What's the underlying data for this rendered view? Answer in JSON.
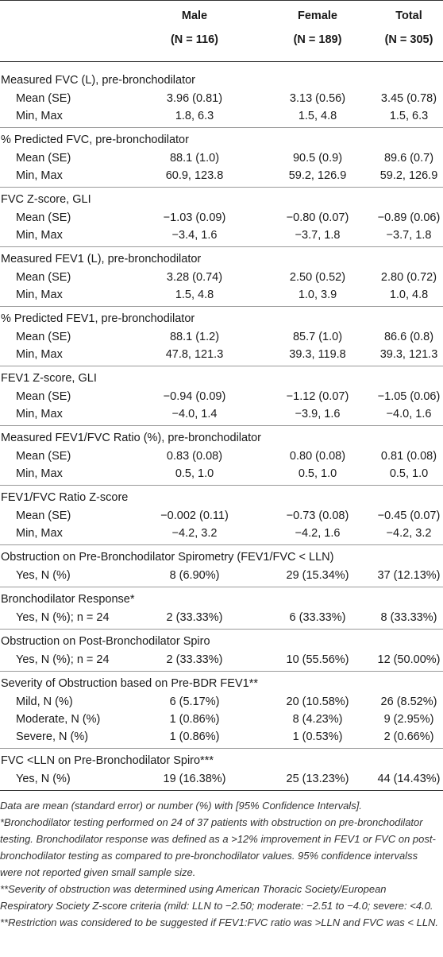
{
  "header": {
    "columns": [
      "Male",
      "Female",
      "Total"
    ],
    "n": [
      "(N = 116)",
      "(N = 189)",
      "(N = 305)"
    ]
  },
  "sections": [
    {
      "title": "Measured FVC (L), pre-bronchodilator",
      "rows": [
        {
          "label": "Mean (SE)",
          "values": [
            "3.96 (0.81)",
            "3.13 (0.56)",
            "3.45 (0.78)"
          ]
        },
        {
          "label": "Min, Max",
          "values": [
            "1.8, 6.3",
            "1.5, 4.8",
            "1.5, 6.3"
          ]
        }
      ]
    },
    {
      "title": "% Predicted FVC, pre-bronchodilator",
      "rows": [
        {
          "label": "Mean (SE)",
          "values": [
            "88.1 (1.0)",
            "90.5 (0.9)",
            "89.6 (0.7)"
          ]
        },
        {
          "label": "Min, Max",
          "values": [
            "60.9, 123.8",
            "59.2, 126.9",
            "59.2, 126.9"
          ]
        }
      ]
    },
    {
      "title": "FVC Z-score, GLI",
      "rows": [
        {
          "label": "Mean (SE)",
          "values": [
            "−1.03 (0.09)",
            "−0.80 (0.07)",
            "−0.89 (0.06)"
          ]
        },
        {
          "label": "Min, Max",
          "values": [
            "−3.4, 1.6",
            "−3.7, 1.8",
            "−3.7, 1.8"
          ]
        }
      ]
    },
    {
      "title": "Measured FEV1 (L), pre-bronchodilator",
      "rows": [
        {
          "label": "Mean (SE)",
          "values": [
            "3.28 (0.74)",
            "2.50 (0.52)",
            "2.80 (0.72)"
          ]
        },
        {
          "label": "Min, Max",
          "values": [
            "1.5, 4.8",
            "1.0, 3.9",
            "1.0, 4.8"
          ]
        }
      ]
    },
    {
      "title": "% Predicted FEV1, pre-bronchodilator",
      "rows": [
        {
          "label": "Mean (SE)",
          "values": [
            "88.1 (1.2)",
            "85.7 (1.0)",
            "86.6 (0.8)"
          ]
        },
        {
          "label": "Min, Max",
          "values": [
            "47.8, 121.3",
            "39.3, 119.8",
            "39.3, 121.3"
          ]
        }
      ]
    },
    {
      "title": "FEV1 Z-score, GLI",
      "rows": [
        {
          "label": "Mean (SE)",
          "values": [
            "−0.94 (0.09)",
            "−1.12 (0.07)",
            "−1.05 (0.06)"
          ]
        },
        {
          "label": "Min, Max",
          "values": [
            "−4.0, 1.4",
            "−3.9, 1.6",
            "−4.0, 1.6"
          ]
        }
      ]
    },
    {
      "title": "Measured FEV1/FVC Ratio (%), pre-bronchodilator",
      "rows": [
        {
          "label": "Mean (SE)",
          "values": [
            "0.83 (0.08)",
            "0.80 (0.08)",
            "0.81 (0.08)"
          ]
        },
        {
          "label": "Min, Max",
          "values": [
            "0.5, 1.0",
            "0.5, 1.0",
            "0.5, 1.0"
          ]
        }
      ]
    },
    {
      "title": "FEV1/FVC Ratio Z-score",
      "rows": [
        {
          "label": "Mean (SE)",
          "values": [
            "−0.002 (0.11)",
            "−0.73 (0.08)",
            "−0.45 (0.07)"
          ]
        },
        {
          "label": "Min, Max",
          "values": [
            "−4.2, 3.2",
            "−4.2, 1.6",
            "−4.2, 3.2"
          ]
        }
      ]
    },
    {
      "title": "Obstruction on Pre-Bronchodilator Spirometry (FEV1/FVC < LLN)",
      "rows": [
        {
          "label": "Yes, N (%)",
          "values": [
            "8 (6.90%)",
            "29 (15.34%)",
            "37 (12.13%)"
          ]
        }
      ]
    },
    {
      "title": "Bronchodilator Response*",
      "rows": [
        {
          "label": "Yes, N (%); n = 24",
          "values": [
            "2 (33.33%)",
            "6 (33.33%)",
            "8 (33.33%)"
          ]
        }
      ]
    },
    {
      "title": "Obstruction on Post-Bronchodilator Spiro",
      "rows": [
        {
          "label": "Yes, N (%); n = 24",
          "values": [
            "2 (33.33%)",
            "10 (55.56%)",
            "12 (50.00%)"
          ]
        }
      ]
    },
    {
      "title": "Severity of Obstruction based on Pre-BDR FEV1**",
      "rows": [
        {
          "label": "Mild, N (%)",
          "values": [
            "6 (5.17%)",
            "20 (10.58%)",
            "26 (8.52%)"
          ]
        },
        {
          "label": "Moderate, N (%)",
          "values": [
            "1 (0.86%)",
            "8 (4.23%)",
            "9 (2.95%)"
          ]
        },
        {
          "label": "Severe, N (%)",
          "values": [
            "1 (0.86%)",
            "1 (0.53%)",
            "2 (0.66%)"
          ]
        }
      ]
    },
    {
      "title": "FVC <LLN on Pre-Bronchodilator Spiro***",
      "rows": [
        {
          "label": "Yes, N (%)",
          "values": [
            "19 (16.38%)",
            "25 (13.23%)",
            "44 (14.43%)"
          ]
        }
      ]
    }
  ],
  "footnotes": [
    "Data are mean (standard error) or number (%) with [95% Confidence Intervals].",
    "*Bronchodilator testing performed on 24 of 37 patients with obstruction on pre-bronchodilator testing. Bronchodilator response was defined as a >12% improvement in FEV1 or FVC on post-bronchodilator testing as compared to pre-bronchodilator values. 95% confidence intervalss were not reported given small sample size.",
    "**Severity of obstruction was determined using American Thoracic Society/European Respiratory Society Z-score criteria (mild: LLN to −2.50; moderate: −2.51 to −4.0; severe: <4.0.",
    "**Restriction was considered to be suggested if FEV1:FVC ratio was >LLN and FVC was < LLN."
  ]
}
